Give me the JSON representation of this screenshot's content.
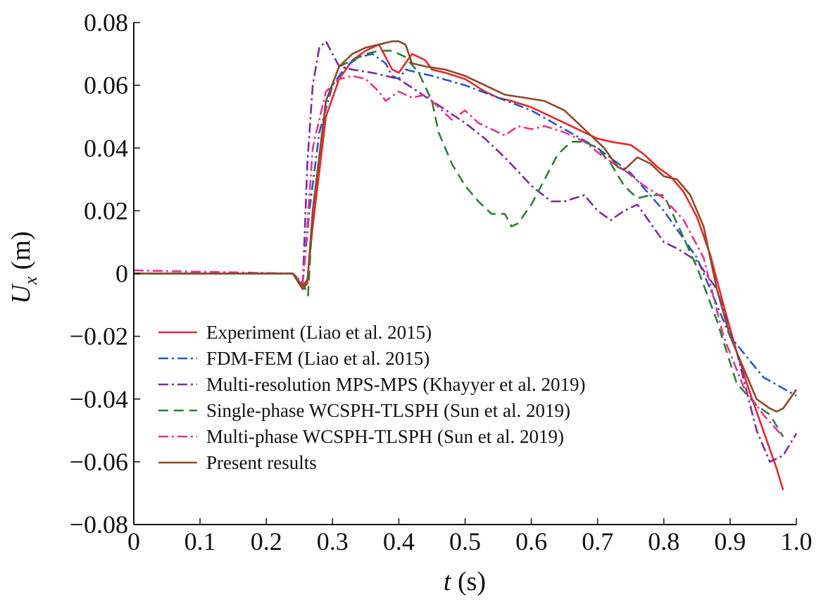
{
  "chart_data": {
    "type": "line",
    "title": "",
    "xlabel": {
      "var": "t",
      "unit": " (s)"
    },
    "ylabel": {
      "var": "U",
      "sub": "x",
      "unit": " (m)"
    },
    "xlim": [
      0,
      1.0
    ],
    "ylim": [
      -0.08,
      0.08
    ],
    "xticks": [
      "0",
      "0.1",
      "0.2",
      "0.3",
      "0.4",
      "0.5",
      "0.6",
      "0.7",
      "0.8",
      "0.9",
      "1.0"
    ],
    "xtick_values": [
      0,
      0.1,
      0.2,
      0.3,
      0.4,
      0.5,
      0.6,
      0.7,
      0.8,
      0.9,
      1.0
    ],
    "yticks": [
      "0.08",
      "0.06",
      "0.04",
      "0.02",
      "0",
      "−0.02",
      "−0.04",
      "−0.06",
      "−0.08"
    ],
    "ytick_values": [
      0.08,
      0.06,
      0.04,
      0.02,
      0,
      -0.02,
      -0.04,
      -0.06,
      -0.08
    ],
    "legend_position": "bottom-left",
    "series": [
      {
        "name": "Experiment (Liao et al.  2015)",
        "color": "#e8262a",
        "dash": "solid",
        "x": [
          0,
          0.24,
          0.255,
          0.262,
          0.27,
          0.29,
          0.31,
          0.33,
          0.35,
          0.37,
          0.38,
          0.39,
          0.4,
          0.41,
          0.42,
          0.44,
          0.45,
          0.47,
          0.5,
          0.53,
          0.55,
          0.57,
          0.6,
          0.63,
          0.66,
          0.68,
          0.7,
          0.72,
          0.75,
          0.77,
          0.79,
          0.81,
          0.83,
          0.85,
          0.87,
          0.89,
          0.91,
          0.93,
          0.95,
          0.97,
          0.98
        ],
        "y": [
          0,
          0,
          -0.004,
          -0.002,
          0.015,
          0.05,
          0.062,
          0.068,
          0.071,
          0.073,
          0.069,
          0.065,
          0.064,
          0.067,
          0.07,
          0.068,
          0.065,
          0.064,
          0.062,
          0.058,
          0.056,
          0.055,
          0.053,
          0.05,
          0.047,
          0.045,
          0.043,
          0.042,
          0.041,
          0.038,
          0.034,
          0.031,
          0.026,
          0.018,
          0.006,
          -0.01,
          -0.025,
          -0.038,
          -0.05,
          -0.062,
          -0.069
        ]
      },
      {
        "name": "FDM-FEM (Liao et al.  2015)",
        "color": "#2857c5",
        "dash": "dashdot",
        "x": [
          0,
          0.24,
          0.255,
          0.265,
          0.28,
          0.3,
          0.32,
          0.34,
          0.36,
          0.38,
          0.39,
          0.4,
          0.41,
          0.43,
          0.45,
          0.5,
          0.55,
          0.6,
          0.65,
          0.7,
          0.75,
          0.8,
          0.85,
          0.9,
          0.95,
          1.0
        ],
        "y": [
          0,
          0,
          -0.003,
          0.02,
          0.045,
          0.06,
          0.066,
          0.069,
          0.07,
          0.067,
          0.063,
          0.062,
          0.065,
          0.064,
          0.063,
          0.06,
          0.056,
          0.052,
          0.046,
          0.04,
          0.032,
          0.02,
          0.005,
          -0.02,
          -0.033,
          -0.039
        ]
      },
      {
        "name": "Multi-resolution MPS-MPS (Khayyer et al.  2019)",
        "color": "#7b2aa2",
        "dash": "dashdot",
        "x": [
          0,
          0.24,
          0.255,
          0.262,
          0.27,
          0.28,
          0.29,
          0.3,
          0.31,
          0.33,
          0.36,
          0.4,
          0.45,
          0.5,
          0.53,
          0.56,
          0.6,
          0.63,
          0.65,
          0.68,
          0.7,
          0.72,
          0.74,
          0.76,
          0.78,
          0.8,
          0.82,
          0.85,
          0.88,
          0.91,
          0.94,
          0.96,
          0.98,
          1.0
        ],
        "y": [
          0,
          0,
          -0.003,
          0.035,
          0.06,
          0.072,
          0.074,
          0.07,
          0.066,
          0.065,
          0.064,
          0.062,
          0.055,
          0.048,
          0.043,
          0.037,
          0.028,
          0.023,
          0.023,
          0.025,
          0.02,
          0.017,
          0.02,
          0.022,
          0.016,
          0.01,
          0.008,
          0.004,
          -0.005,
          -0.025,
          -0.05,
          -0.06,
          -0.058,
          -0.051
        ]
      },
      {
        "name": "Single-phase WCSPH-TLSPH (Sun et al.  2019)",
        "color": "#2f7d32",
        "dash": "dashed",
        "x": [
          0,
          0.24,
          0.255,
          0.263,
          0.27,
          0.29,
          0.31,
          0.33,
          0.35,
          0.37,
          0.39,
          0.41,
          0.43,
          0.45,
          0.46,
          0.48,
          0.5,
          0.52,
          0.54,
          0.56,
          0.57,
          0.58,
          0.6,
          0.62,
          0.64,
          0.66,
          0.68,
          0.7,
          0.72,
          0.74,
          0.76,
          0.78,
          0.8,
          0.82,
          0.85,
          0.88,
          0.91,
          0.94,
          0.96,
          0.98
        ],
        "y": [
          0,
          0,
          -0.003,
          -0.007,
          0.02,
          0.055,
          0.066,
          0.068,
          0.07,
          0.071,
          0.071,
          0.069,
          0.064,
          0.055,
          0.045,
          0.035,
          0.028,
          0.023,
          0.019,
          0.019,
          0.015,
          0.016,
          0.022,
          0.03,
          0.038,
          0.042,
          0.042,
          0.04,
          0.035,
          0.028,
          0.024,
          0.025,
          0.025,
          0.016,
          0.002,
          -0.015,
          -0.035,
          -0.042,
          -0.045,
          -0.052
        ]
      },
      {
        "name": "Multi-phase WCSPH-TLSPH (Sun et al.  2019)",
        "color": "#e2338f",
        "dash": "dashdot",
        "x": [
          0,
          0.24,
          0.255,
          0.262,
          0.27,
          0.29,
          0.31,
          0.33,
          0.35,
          0.37,
          0.38,
          0.4,
          0.42,
          0.44,
          0.46,
          0.48,
          0.5,
          0.52,
          0.54,
          0.56,
          0.58,
          0.6,
          0.62,
          0.65,
          0.68,
          0.71,
          0.74,
          0.77,
          0.8,
          0.83,
          0.86,
          0.89,
          0.92,
          0.95,
          0.98
        ],
        "y": [
          0.001,
          0,
          -0.003,
          0.015,
          0.04,
          0.058,
          0.062,
          0.063,
          0.062,
          0.058,
          0.055,
          0.058,
          0.056,
          0.057,
          0.053,
          0.049,
          0.052,
          0.048,
          0.046,
          0.044,
          0.047,
          0.046,
          0.047,
          0.045,
          0.042,
          0.037,
          0.033,
          0.028,
          0.024,
          0.017,
          0.005,
          -0.02,
          -0.036,
          -0.045,
          -0.052
        ]
      },
      {
        "name": "Present results",
        "color": "#8b4a2b",
        "dash": "solid",
        "x": [
          0,
          0.24,
          0.255,
          0.262,
          0.27,
          0.29,
          0.31,
          0.33,
          0.35,
          0.37,
          0.39,
          0.4,
          0.41,
          0.42,
          0.44,
          0.47,
          0.5,
          0.53,
          0.56,
          0.59,
          0.62,
          0.65,
          0.67,
          0.69,
          0.71,
          0.73,
          0.74,
          0.76,
          0.78,
          0.8,
          0.82,
          0.84,
          0.86,
          0.88,
          0.9,
          0.92,
          0.94,
          0.96,
          0.97,
          0.98,
          0.99,
          1.0
        ],
        "y": [
          0,
          0,
          -0.005,
          -0.003,
          0.02,
          0.055,
          0.066,
          0.07,
          0.072,
          0.073,
          0.074,
          0.074,
          0.073,
          0.067,
          0.066,
          0.065,
          0.063,
          0.06,
          0.057,
          0.056,
          0.055,
          0.052,
          0.048,
          0.044,
          0.04,
          0.034,
          0.033,
          0.037,
          0.035,
          0.031,
          0.03,
          0.025,
          0.015,
          -0.005,
          -0.02,
          -0.03,
          -0.04,
          -0.043,
          -0.044,
          -0.043,
          -0.04,
          -0.037
        ]
      }
    ]
  }
}
